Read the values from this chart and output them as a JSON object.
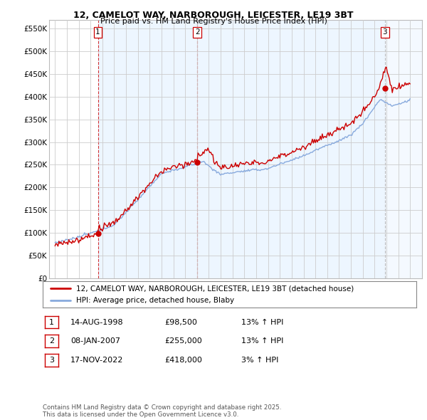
{
  "title1": "12, CAMELOT WAY, NARBOROUGH, LEICESTER, LE19 3BT",
  "title2": "Price paid vs. HM Land Registry's House Price Index (HPI)",
  "ylim": [
    0,
    570000
  ],
  "yticks": [
    0,
    50000,
    100000,
    150000,
    200000,
    250000,
    300000,
    350000,
    400000,
    450000,
    500000,
    550000
  ],
  "ytick_labels": [
    "£0",
    "£50K",
    "£100K",
    "£150K",
    "£200K",
    "£250K",
    "£300K",
    "£350K",
    "£400K",
    "£450K",
    "£500K",
    "£550K"
  ],
  "sale_color": "#cc0000",
  "hpi_color": "#88aadd",
  "vline_color_red": "#cc0000",
  "vline_color_gray": "#aaaaaa",
  "grid_color": "#cccccc",
  "shade_color": "#ddeeff",
  "bg_color": "#ffffff",
  "sales": [
    {
      "date_num": 1998.62,
      "price": 98500,
      "label": "1",
      "vline_color": "#cc0000"
    },
    {
      "date_num": 2007.03,
      "price": 255000,
      "label": "2",
      "vline_color": "#cc0000"
    },
    {
      "date_num": 2022.88,
      "price": 418000,
      "label": "3",
      "vline_color": "#aaaaaa"
    }
  ],
  "legend_sale_label": "12, CAMELOT WAY, NARBOROUGH, LEICESTER, LE19 3BT (detached house)",
  "legend_hpi_label": "HPI: Average price, detached house, Blaby",
  "table_rows": [
    {
      "num": "1",
      "date": "14-AUG-1998",
      "price": "£98,500",
      "change": "13% ↑ HPI"
    },
    {
      "num": "2",
      "date": "08-JAN-2007",
      "price": "£255,000",
      "change": "13% ↑ HPI"
    },
    {
      "num": "3",
      "date": "17-NOV-2022",
      "price": "£418,000",
      "change": "3% ↑ HPI"
    }
  ],
  "footer": "Contains HM Land Registry data © Crown copyright and database right 2025.\nThis data is licensed under the Open Government Licence v3.0.",
  "xlim_start": 1994.5,
  "xlim_end": 2026.0
}
